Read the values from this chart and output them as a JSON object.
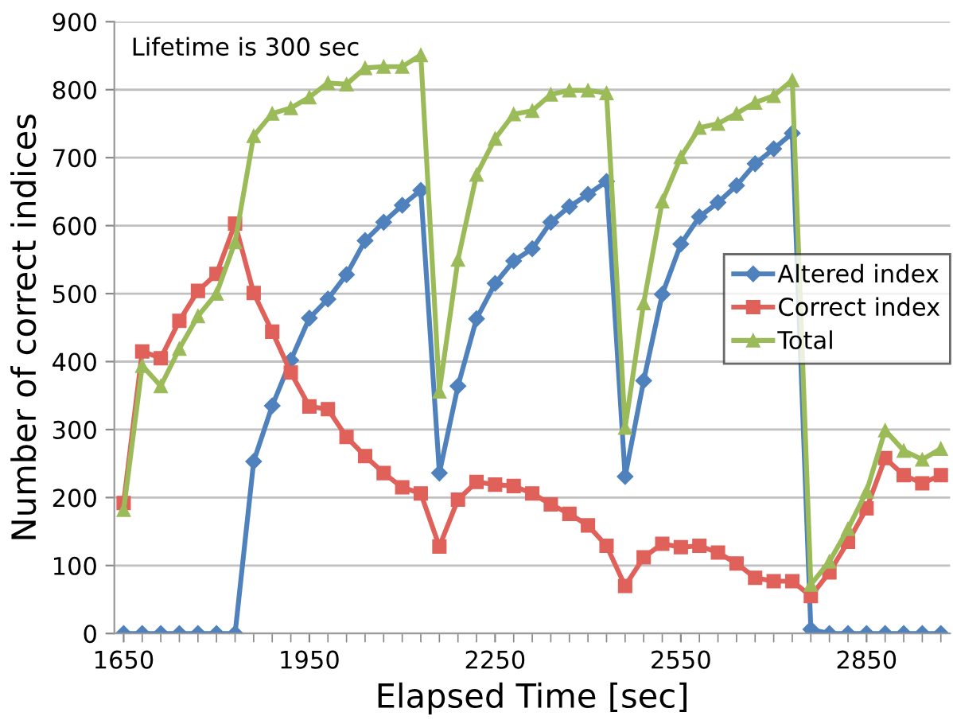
{
  "chart_data": {
    "type": "line",
    "xlabel": "Elapsed Time [sec]",
    "ylabel": "Number of correct indices",
    "annotations": [
      "Lifetime is 300 sec"
    ],
    "x": [
      1650,
      1680,
      1710,
      1740,
      1770,
      1800,
      1830,
      1860,
      1890,
      1920,
      1950,
      1980,
      2010,
      2040,
      2070,
      2100,
      2130,
      2160,
      2190,
      2220,
      2250,
      2280,
      2310,
      2340,
      2370,
      2400,
      2430,
      2460,
      2490,
      2520,
      2550,
      2580,
      2610,
      2640,
      2670,
      2700,
      2730,
      2760,
      2790,
      2820,
      2850,
      2880,
      2910,
      2940,
      2970
    ],
    "series": [
      {
        "name": "Altered index",
        "color": "#4f81bd",
        "marker": "diamond",
        "values": [
          0,
          0,
          0,
          0,
          0,
          0,
          0,
          253,
          335,
          402,
          464,
          492,
          528,
          578,
          605,
          630,
          652,
          236,
          364,
          463,
          515,
          548,
          566,
          605,
          628,
          646,
          665,
          231,
          372,
          499,
          573,
          613,
          634,
          659,
          691,
          713,
          736,
          6,
          0,
          0,
          0,
          0,
          0,
          0,
          0
        ]
      },
      {
        "name": "Correct index",
        "color": "#e0605a",
        "marker": "square",
        "values": [
          192,
          415,
          405,
          460,
          504,
          529,
          603,
          501,
          444,
          384,
          334,
          330,
          289,
          261,
          236,
          215,
          206,
          128,
          197,
          223,
          219,
          217,
          206,
          190,
          176,
          159,
          129,
          70,
          112,
          132,
          127,
          129,
          119,
          103,
          82,
          77,
          77,
          55,
          90,
          135,
          184,
          258,
          233,
          221,
          233
        ]
      },
      {
        "name": "Total",
        "color": "#9bbb59",
        "marker": "triangle",
        "values": [
          182,
          394,
          364,
          419,
          467,
          500,
          576,
          732,
          765,
          773,
          789,
          810,
          808,
          832,
          834,
          834,
          851,
          356,
          550,
          675,
          728,
          764,
          769,
          793,
          799,
          799,
          795,
          303,
          486,
          636,
          701,
          744,
          750,
          765,
          781,
          791,
          814,
          72,
          106,
          154,
          209,
          299,
          269,
          256,
          272
        ]
      }
    ],
    "xlim": [
      1635,
      2985
    ],
    "xticks": [
      1650,
      1950,
      2250,
      2550,
      2850
    ],
    "ylim": [
      0,
      900
    ],
    "yticks": [
      0,
      100,
      200,
      300,
      400,
      500,
      600,
      700,
      800,
      900
    ],
    "grid": "y",
    "legend": "right",
    "line_style": "solid"
  }
}
